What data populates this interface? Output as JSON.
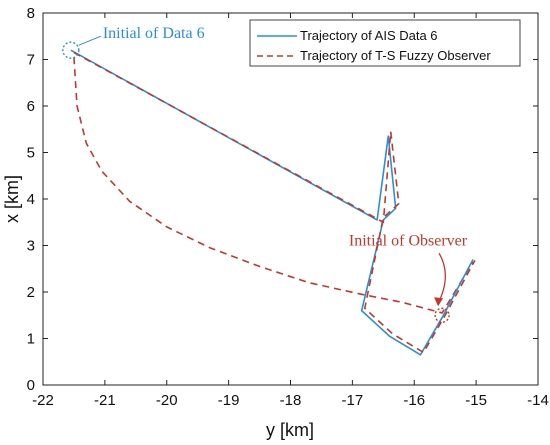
{
  "chart_data": {
    "type": "line",
    "xlabel": "y [km]",
    "ylabel": "x [km]",
    "xlim": [
      -22,
      -14
    ],
    "ylim": [
      0,
      8
    ],
    "x_ticks": [
      -22,
      -21,
      -20,
      -19,
      -18,
      -17,
      -16,
      -15,
      -14
    ],
    "y_ticks": [
      0,
      1,
      2,
      3,
      4,
      5,
      6,
      7,
      8
    ],
    "grid": false,
    "legend_position": "top-right",
    "series": [
      {
        "name": "Trajectory of AIS Data 6",
        "style": "solid",
        "color": "#2a8fd8",
        "points": [
          [
            -21.55,
            7.2
          ],
          [
            -16.6,
            3.55
          ],
          [
            -16.42,
            5.35
          ],
          [
            -16.3,
            3.8
          ],
          [
            -16.5,
            3.55
          ],
          [
            -16.85,
            1.6
          ],
          [
            -16.4,
            1.05
          ],
          [
            -15.9,
            0.65
          ],
          [
            -15.55,
            1.45
          ],
          [
            -15.05,
            2.7
          ]
        ]
      },
      {
        "name": "Trajectory of T-S Fuzzy Observer",
        "style": "dashed",
        "color": "#c0392b",
        "points": [
          [
            -21.5,
            7.05
          ],
          [
            -21.45,
            6.0
          ],
          [
            -21.3,
            5.2
          ],
          [
            -21.05,
            4.6
          ],
          [
            -20.6,
            3.95
          ],
          [
            -20.0,
            3.4
          ],
          [
            -19.3,
            2.95
          ],
          [
            -18.5,
            2.55
          ],
          [
            -17.7,
            2.2
          ],
          [
            -16.85,
            1.95
          ],
          [
            -16.2,
            1.78
          ],
          [
            -15.55,
            1.55
          ],
          [
            -15.05,
            2.65
          ]
        ]
      },
      {
        "name": "",
        "style": "dashed",
        "color": "#c0392b",
        "points": [
          [
            -21.5,
            7.15
          ],
          [
            -16.5,
            3.5
          ],
          [
            -16.38,
            5.45
          ],
          [
            -16.25,
            3.9
          ],
          [
            -16.5,
            3.6
          ],
          [
            -16.8,
            1.65
          ],
          [
            -16.35,
            1.1
          ],
          [
            -15.85,
            0.7
          ],
          [
            -15.5,
            1.5
          ],
          [
            -15.02,
            2.68
          ]
        ]
      }
    ],
    "annotations": [
      {
        "text": "Initial of Data 6",
        "x": -21.55,
        "y": 7.2,
        "color": "#2a8fd8"
      },
      {
        "text": "Initial of Observer",
        "x": -15.55,
        "y": 1.5,
        "color": "#c0392b"
      }
    ]
  }
}
